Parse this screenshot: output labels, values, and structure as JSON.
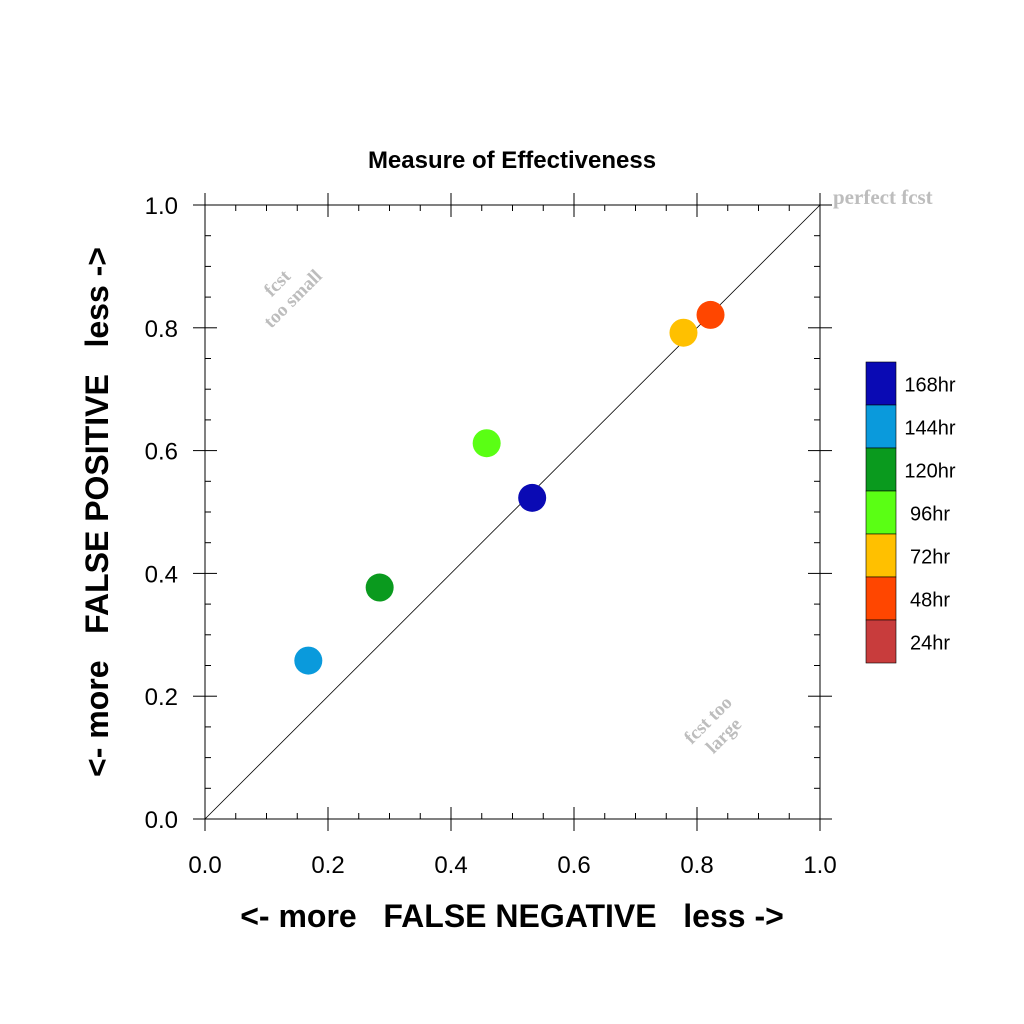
{
  "chart_data": {
    "type": "scatter",
    "title": "Measure of Effectiveness",
    "xlabel": "<- more   FALSE NEGATIVE   less ->",
    "ylabel": "<- more   FALSE POSITIVE   less ->",
    "xlim": [
      0.0,
      1.0
    ],
    "ylim": [
      0.0,
      1.0
    ],
    "xticks": [
      "0.0",
      "0.2",
      "0.4",
      "0.6",
      "0.8",
      "1.0"
    ],
    "yticks": [
      "0.0",
      "0.2",
      "0.4",
      "0.6",
      "0.8",
      "1.0"
    ],
    "grid": false,
    "legend_placement": "right",
    "reference_line": {
      "from": [
        0,
        0
      ],
      "to": [
        1,
        1
      ]
    },
    "annotations": {
      "perfect": "perfect fcst",
      "too_small_1": "fcst",
      "too_small_2": "too small",
      "too_large_1": "fcst too",
      "too_large_2": "large"
    },
    "series": [
      {
        "name": "168hr",
        "color": "#0a0ab4",
        "x": 0.532,
        "y": 0.523
      },
      {
        "name": "144hr",
        "color": "#0a9adc",
        "x": 0.168,
        "y": 0.258
      },
      {
        "name": "120hr",
        "color": "#0a9a1e",
        "x": 0.284,
        "y": 0.377
      },
      {
        "name": "96hr",
        "color": "#5aff14",
        "x": 0.458,
        "y": 0.612
      },
      {
        "name": "72hr",
        "color": "#ffc000",
        "x": 0.778,
        "y": 0.792
      },
      {
        "name": "48hr",
        "color": "#ff4600",
        "x": 0.822,
        "y": 0.821
      },
      {
        "name": "24hr",
        "color": "#c83c3c",
        "x": null,
        "y": null
      }
    ]
  }
}
